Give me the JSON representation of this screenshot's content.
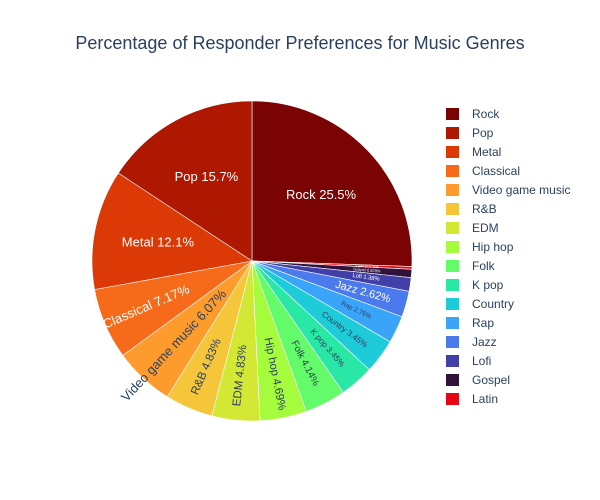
{
  "chart_data": {
    "type": "pie",
    "title": "Percentage of Responder Preferences for Music Genres",
    "legend_position": "right",
    "slices": [
      {
        "label": "Rock",
        "text": "Rock 25.5%",
        "value": 25.5,
        "color": "#7a0403"
      },
      {
        "label": "Latin",
        "text": "Latin 0.276%",
        "value": 0.276,
        "color": "#e40515"
      },
      {
        "label": "Gospel",
        "text": "Gospel 0.828%",
        "value": 0.828,
        "color": "#30123b"
      },
      {
        "label": "Lofi",
        "text": "Lofi 1.38%",
        "value": 1.38,
        "color": "#4040a8"
      },
      {
        "label": "Jazz",
        "text": "Jazz 2.62%",
        "value": 2.62,
        "color": "#4a7aeb"
      },
      {
        "label": "Rap",
        "text": "Rap 2.76%",
        "value": 2.76,
        "color": "#3aa4f9"
      },
      {
        "label": "Country",
        "text": "Country 3.45%",
        "value": 3.45,
        "color": "#1ecbd9"
      },
      {
        "label": "K pop",
        "text": "K pop 3.45%",
        "value": 3.45,
        "color": "#29e8a6"
      },
      {
        "label": "Folk",
        "text": "Folk 4.14%",
        "value": 4.14,
        "color": "#63fb6a"
      },
      {
        "label": "Hip hop",
        "text": "Hip hop 4.69%",
        "value": 4.69,
        "color": "#a4fc3c"
      },
      {
        "label": "EDM",
        "text": "EDM 4.83%",
        "value": 4.83,
        "color": "#d3e835"
      },
      {
        "label": "R&B",
        "text": "R&B 4.83%",
        "value": 4.83,
        "color": "#f5c63a"
      },
      {
        "label": "Video game music",
        "text": "Video game music 6.07%",
        "value": 6.07,
        "color": "#fe9b2d"
      },
      {
        "label": "Classical",
        "text": "Classical 7.17%",
        "value": 7.17,
        "color": "#f66b19"
      },
      {
        "label": "Metal",
        "text": "Metal 12.1%",
        "value": 12.1,
        "color": "#db3a07"
      },
      {
        "label": "Pop",
        "text": "Pop 15.7%",
        "value": 15.7,
        "color": "#ae1801"
      }
    ],
    "legend_order": [
      "Rock",
      "Pop",
      "Metal",
      "Classical",
      "Video game music",
      "R&B",
      "EDM",
      "Hip hop",
      "Folk",
      "K pop",
      "Country",
      "Rap",
      "Jazz",
      "Lofi",
      "Gospel",
      "Latin"
    ]
  }
}
